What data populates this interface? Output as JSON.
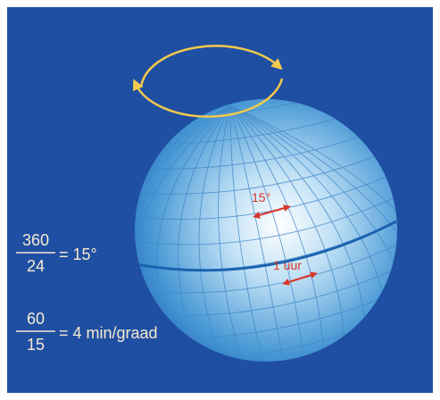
{
  "formulas": [
    {
      "numerator": "360",
      "denominator": "24",
      "result": "= 15°"
    },
    {
      "numerator": "60",
      "denominator": "15",
      "result": "= 4 min/graad"
    }
  ],
  "globe_labels": {
    "angle": "15°",
    "time": "1 uur"
  }
}
